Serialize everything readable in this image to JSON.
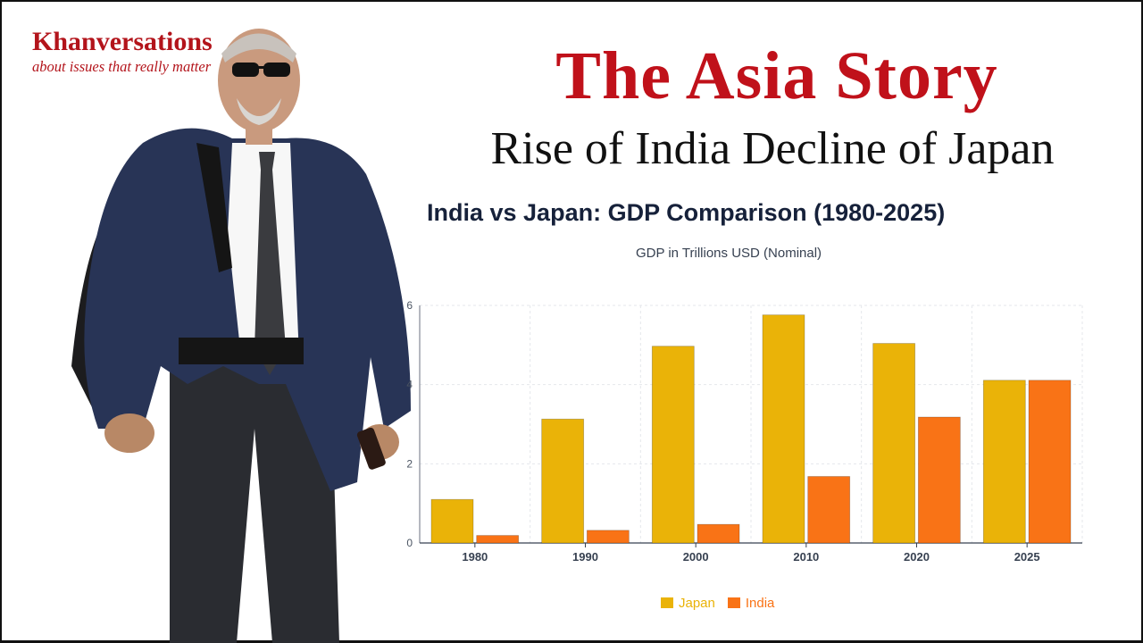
{
  "brand": {
    "name": "Khanversations",
    "tagline": "about issues that really matter"
  },
  "header": {
    "title": "The Asia Story",
    "subtitle": "Rise of India Decline of Japan"
  },
  "colors": {
    "brand_red": "#b3141b",
    "japan": "#eab308",
    "india": "#f97316"
  },
  "chart_data": {
    "type": "bar",
    "title": "India vs Japan: GDP Comparison (1980-2025)",
    "subtitle": "GDP in Trillions USD (Nominal)",
    "categories": [
      "1980",
      "1990",
      "2000",
      "2010",
      "2020",
      "2025"
    ],
    "series": [
      {
        "name": "Japan",
        "color": "#eab308",
        "values": [
          1.1,
          3.13,
          4.97,
          5.76,
          5.04,
          4.11
        ]
      },
      {
        "name": "India",
        "color": "#f97316",
        "values": [
          0.19,
          0.32,
          0.47,
          1.68,
          3.18,
          4.11
        ]
      }
    ],
    "ylim": [
      0,
      6
    ],
    "yticks": [
      "0",
      "2",
      "4",
      "6"
    ],
    "grid": true,
    "legend_position": "bottom-center"
  }
}
